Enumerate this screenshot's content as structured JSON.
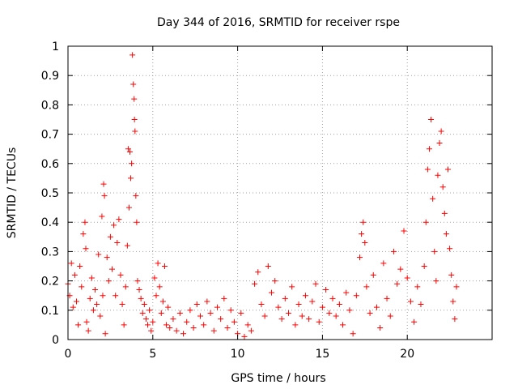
{
  "chart_data": {
    "type": "scatter",
    "title": "Day 344 of 2016, SRMTID for receiver rspe",
    "xlabel": "GPS time / hours",
    "ylabel": "SRMTID / TECUs",
    "xlim": [
      0,
      25
    ],
    "ylim": [
      0,
      1
    ],
    "x_ticks": [
      0,
      5,
      10,
      15,
      20
    ],
    "x_tick_labels": [
      "0",
      "5",
      "10",
      "15",
      "20"
    ],
    "y_ticks": [
      0,
      0.1,
      0.2,
      0.3,
      0.4,
      0.5,
      0.6,
      0.7,
      0.8,
      0.9,
      1
    ],
    "y_tick_labels": [
      "0",
      "0.1",
      "0.2",
      "0.3",
      "0.4",
      "0.5",
      "0.6",
      "0.7",
      "0.8",
      "0.9",
      "1"
    ],
    "grid": true,
    "marker": "+",
    "color": "#ff0000",
    "series": [
      {
        "name": "SRMTID",
        "points": [
          [
            0.0,
            0.19
          ],
          [
            0.1,
            0.15
          ],
          [
            0.2,
            0.26
          ],
          [
            0.3,
            0.11
          ],
          [
            0.4,
            0.22
          ],
          [
            0.5,
            0.13
          ],
          [
            0.6,
            0.05
          ],
          [
            0.7,
            0.25
          ],
          [
            0.8,
            0.18
          ],
          [
            0.9,
            0.36
          ],
          [
            1.0,
            0.4
          ],
          [
            1.05,
            0.31
          ],
          [
            1.1,
            0.06
          ],
          [
            1.2,
            0.03
          ],
          [
            1.3,
            0.14
          ],
          [
            1.4,
            0.21
          ],
          [
            1.5,
            0.1
          ],
          [
            1.6,
            0.17
          ],
          [
            1.7,
            0.12
          ],
          [
            1.8,
            0.29
          ],
          [
            1.9,
            0.08
          ],
          [
            2.0,
            0.42
          ],
          [
            2.05,
            0.15
          ],
          [
            2.1,
            0.53
          ],
          [
            2.15,
            0.49
          ],
          [
            2.2,
            0.02
          ],
          [
            2.3,
            0.28
          ],
          [
            2.4,
            0.2
          ],
          [
            2.5,
            0.35
          ],
          [
            2.6,
            0.24
          ],
          [
            2.7,
            0.39
          ],
          [
            2.8,
            0.15
          ],
          [
            2.9,
            0.33
          ],
          [
            3.0,
            0.41
          ],
          [
            3.1,
            0.22
          ],
          [
            3.2,
            0.12
          ],
          [
            3.3,
            0.05
          ],
          [
            3.4,
            0.18
          ],
          [
            3.5,
            0.32
          ],
          [
            3.55,
            0.65
          ],
          [
            3.6,
            0.45
          ],
          [
            3.65,
            0.64
          ],
          [
            3.7,
            0.55
          ],
          [
            3.75,
            0.6
          ],
          [
            3.8,
            0.97
          ],
          [
            3.85,
            0.87
          ],
          [
            3.9,
            0.82
          ],
          [
            3.92,
            0.75
          ],
          [
            3.95,
            0.71
          ],
          [
            4.0,
            0.49
          ],
          [
            4.05,
            0.4
          ],
          [
            4.1,
            0.2
          ],
          [
            4.2,
            0.17
          ],
          [
            4.3,
            0.14
          ],
          [
            4.4,
            0.09
          ],
          [
            4.5,
            0.12
          ],
          [
            4.6,
            0.07
          ],
          [
            4.7,
            0.05
          ],
          [
            4.8,
            0.1
          ],
          [
            4.9,
            0.03
          ],
          [
            5.0,
            0.06
          ],
          [
            5.1,
            0.21
          ],
          [
            5.2,
            0.15
          ],
          [
            5.3,
            0.26
          ],
          [
            5.4,
            0.18
          ],
          [
            5.5,
            0.09
          ],
          [
            5.6,
            0.13
          ],
          [
            5.7,
            0.25
          ],
          [
            5.8,
            0.05
          ],
          [
            5.9,
            0.11
          ],
          [
            6.0,
            0.04
          ],
          [
            6.2,
            0.07
          ],
          [
            6.4,
            0.03
          ],
          [
            6.6,
            0.09
          ],
          [
            6.8,
            0.02
          ],
          [
            7.0,
            0.06
          ],
          [
            7.2,
            0.1
          ],
          [
            7.4,
            0.04
          ],
          [
            7.6,
            0.12
          ],
          [
            7.8,
            0.08
          ],
          [
            8.0,
            0.05
          ],
          [
            8.2,
            0.13
          ],
          [
            8.4,
            0.09
          ],
          [
            8.6,
            0.03
          ],
          [
            8.8,
            0.11
          ],
          [
            9.0,
            0.07
          ],
          [
            9.2,
            0.14
          ],
          [
            9.4,
            0.04
          ],
          [
            9.6,
            0.1
          ],
          [
            9.8,
            0.06
          ],
          [
            10.0,
            0.02
          ],
          [
            10.2,
            0.09
          ],
          [
            10.4,
            0.01
          ],
          [
            10.6,
            0.05
          ],
          [
            10.8,
            0.03
          ],
          [
            11.0,
            0.19
          ],
          [
            11.2,
            0.23
          ],
          [
            11.4,
            0.12
          ],
          [
            11.6,
            0.08
          ],
          [
            11.8,
            0.25
          ],
          [
            12.0,
            0.16
          ],
          [
            12.2,
            0.2
          ],
          [
            12.4,
            0.11
          ],
          [
            12.6,
            0.07
          ],
          [
            12.8,
            0.14
          ],
          [
            13.0,
            0.09
          ],
          [
            13.2,
            0.18
          ],
          [
            13.4,
            0.05
          ],
          [
            13.6,
            0.12
          ],
          [
            13.8,
            0.08
          ],
          [
            14.0,
            0.15
          ],
          [
            14.2,
            0.07
          ],
          [
            14.4,
            0.13
          ],
          [
            14.6,
            0.19
          ],
          [
            14.8,
            0.06
          ],
          [
            15.0,
            0.11
          ],
          [
            15.2,
            0.17
          ],
          [
            15.4,
            0.09
          ],
          [
            15.6,
            0.14
          ],
          [
            15.8,
            0.08
          ],
          [
            16.0,
            0.12
          ],
          [
            16.2,
            0.05
          ],
          [
            16.4,
            0.16
          ],
          [
            16.6,
            0.1
          ],
          [
            16.8,
            0.02
          ],
          [
            17.0,
            0.15
          ],
          [
            17.2,
            0.28
          ],
          [
            17.3,
            0.36
          ],
          [
            17.4,
            0.4
          ],
          [
            17.5,
            0.33
          ],
          [
            17.6,
            0.18
          ],
          [
            17.8,
            0.09
          ],
          [
            18.0,
            0.22
          ],
          [
            18.2,
            0.11
          ],
          [
            18.4,
            0.04
          ],
          [
            18.6,
            0.26
          ],
          [
            18.8,
            0.14
          ],
          [
            19.0,
            0.08
          ],
          [
            19.2,
            0.3
          ],
          [
            19.4,
            0.19
          ],
          [
            19.6,
            0.24
          ],
          [
            19.8,
            0.37
          ],
          [
            20.0,
            0.21
          ],
          [
            20.2,
            0.13
          ],
          [
            20.4,
            0.06
          ],
          [
            20.6,
            0.18
          ],
          [
            20.8,
            0.12
          ],
          [
            21.0,
            0.25
          ],
          [
            21.1,
            0.4
          ],
          [
            21.2,
            0.58
          ],
          [
            21.3,
            0.65
          ],
          [
            21.4,
            0.75
          ],
          [
            21.5,
            0.48
          ],
          [
            21.6,
            0.3
          ],
          [
            21.7,
            0.2
          ],
          [
            21.8,
            0.56
          ],
          [
            21.9,
            0.67
          ],
          [
            22.0,
            0.71
          ],
          [
            22.1,
            0.52
          ],
          [
            22.2,
            0.43
          ],
          [
            22.3,
            0.36
          ],
          [
            22.4,
            0.58
          ],
          [
            22.5,
            0.31
          ],
          [
            22.6,
            0.22
          ],
          [
            22.7,
            0.13
          ],
          [
            22.8,
            0.07
          ],
          [
            22.9,
            0.18
          ]
        ]
      }
    ]
  }
}
